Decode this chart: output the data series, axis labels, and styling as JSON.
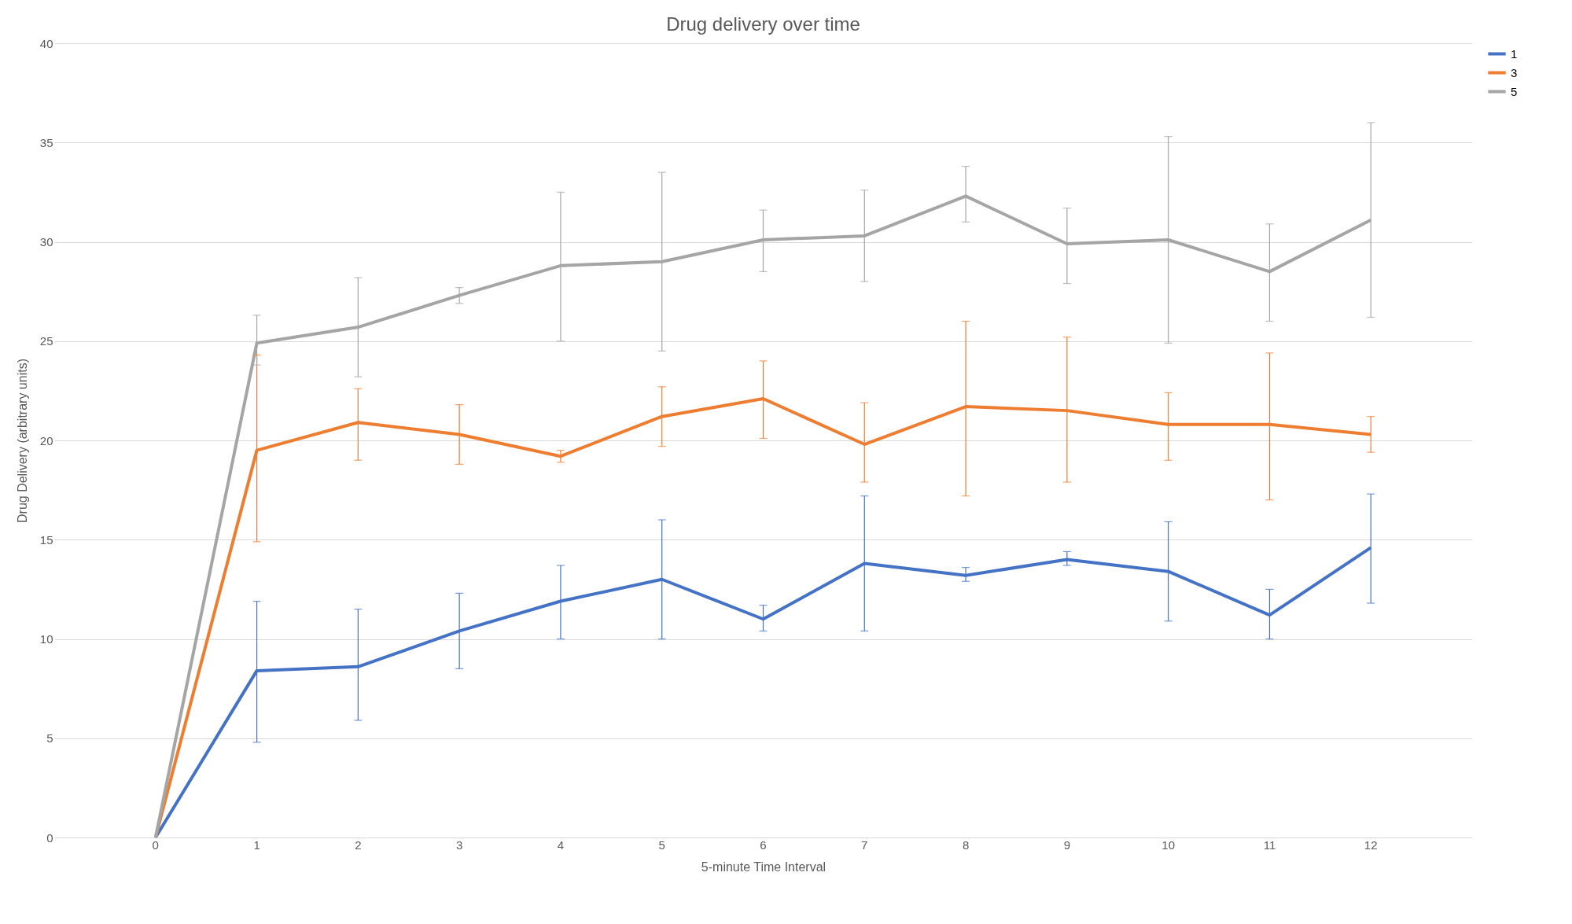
{
  "chart_data": {
    "type": "line",
    "title": "Drug delivery over time",
    "xlabel": "5-minute Time Interval",
    "ylabel": "Drug Delivery (arbitrary units)",
    "categories": [
      "0",
      "1",
      "2",
      "3",
      "4",
      "5",
      "6",
      "7",
      "8",
      "9",
      "10",
      "11",
      "12"
    ],
    "series": [
      {
        "name": "1",
        "color": "#4472c4",
        "values": [
          0,
          8.4,
          8.6,
          10.4,
          11.9,
          13.0,
          11.0,
          13.8,
          13.2,
          14.0,
          13.4,
          11.2,
          14.6
        ],
        "errors": [
          null,
          [
            4.8,
            11.9
          ],
          [
            5.9,
            11.5
          ],
          [
            8.5,
            12.3
          ],
          [
            10.0,
            13.7
          ],
          [
            10.0,
            16.0
          ],
          [
            10.4,
            11.7
          ],
          [
            10.4,
            17.2
          ],
          [
            12.9,
            13.6
          ],
          [
            13.7,
            14.4
          ],
          [
            10.9,
            15.9
          ],
          [
            10.0,
            12.5
          ],
          [
            11.8,
            17.3
          ]
        ]
      },
      {
        "name": "3",
        "color": "#ed7d31",
        "values": [
          0,
          19.5,
          20.9,
          20.3,
          19.2,
          21.2,
          22.1,
          19.8,
          21.7,
          21.5,
          20.8,
          20.8,
          20.3
        ],
        "errors": [
          null,
          [
            14.9,
            24.3
          ],
          [
            19.0,
            22.6
          ],
          [
            18.8,
            21.8
          ],
          [
            18.9,
            19.5
          ],
          [
            19.7,
            22.7
          ],
          [
            20.1,
            24.0
          ],
          [
            17.9,
            21.9
          ],
          [
            17.2,
            26.0
          ],
          [
            17.9,
            25.2
          ],
          [
            19.0,
            22.4
          ],
          [
            17.0,
            24.4
          ],
          [
            19.4,
            21.2
          ]
        ]
      },
      {
        "name": "5",
        "color": "#a5a5a5",
        "values": [
          0,
          24.9,
          25.7,
          27.3,
          28.8,
          29.0,
          30.1,
          30.3,
          32.3,
          29.9,
          30.1,
          28.5,
          31.1
        ],
        "errors": [
          null,
          [
            23.8,
            26.3
          ],
          [
            23.2,
            28.2
          ],
          [
            26.9,
            27.7
          ],
          [
            25.0,
            32.5
          ],
          [
            24.5,
            33.5
          ],
          [
            28.5,
            31.6
          ],
          [
            28.0,
            32.6
          ],
          [
            31.0,
            33.8
          ],
          [
            27.9,
            31.7
          ],
          [
            24.9,
            35.3
          ],
          [
            26.0,
            30.9
          ],
          [
            26.2,
            36.0
          ]
        ]
      }
    ],
    "ylim": [
      0,
      40
    ],
    "yticks": [
      0,
      5,
      10,
      15,
      20,
      25,
      30,
      35,
      40
    ],
    "grid": "y",
    "legend": "right",
    "marker": "none",
    "line_style": "solid"
  }
}
